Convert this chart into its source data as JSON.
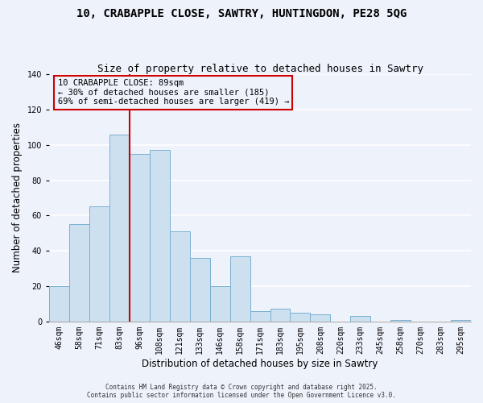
{
  "title": "10, CRABAPPLE CLOSE, SAWTRY, HUNTINGDON, PE28 5QG",
  "subtitle": "Size of property relative to detached houses in Sawtry",
  "xlabel": "Distribution of detached houses by size in Sawtry",
  "ylabel": "Number of detached properties",
  "categories": [
    "46sqm",
    "58sqm",
    "71sqm",
    "83sqm",
    "96sqm",
    "108sqm",
    "121sqm",
    "133sqm",
    "146sqm",
    "158sqm",
    "171sqm",
    "183sqm",
    "195sqm",
    "208sqm",
    "220sqm",
    "233sqm",
    "245sqm",
    "258sqm",
    "270sqm",
    "283sqm",
    "295sqm"
  ],
  "values": [
    20,
    55,
    65,
    106,
    95,
    97,
    51,
    36,
    20,
    37,
    6,
    7,
    5,
    4,
    0,
    3,
    0,
    1,
    0,
    0,
    1
  ],
  "bar_color": "#cce0f0",
  "bar_edge_color": "#7ab0d0",
  "vline_color": "#cc0000",
  "vline_x_index": 3,
  "annotation_text_line1": "10 CRABAPPLE CLOSE: 89sqm",
  "annotation_text_line2": "← 30% of detached houses are smaller (185)",
  "annotation_text_line3": "69% of semi-detached houses are larger (419) →",
  "footer_line1": "Contains HM Land Registry data © Crown copyright and database right 2025.",
  "footer_line2": "Contains public sector information licensed under the Open Government Licence v3.0.",
  "ylim": [
    0,
    140
  ],
  "yticks": [
    0,
    20,
    40,
    60,
    80,
    100,
    120,
    140
  ],
  "background_color": "#eef2fb",
  "grid_color": "#ffffff",
  "title_fontsize": 10,
  "subtitle_fontsize": 9,
  "axis_label_fontsize": 8.5,
  "tick_fontsize": 7
}
